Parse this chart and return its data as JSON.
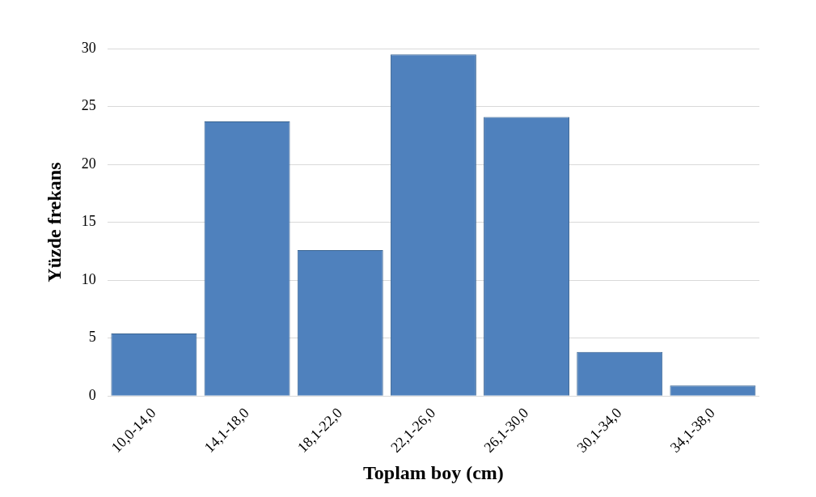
{
  "chart_data": {
    "type": "bar",
    "xlabel": "Toplam boy (cm)",
    "ylabel": "Yüzde frekans",
    "categories": [
      "10,0-14,0",
      "14,1-18,0",
      "18,1-22,0",
      "22,1-26,0",
      "26,1-30,0",
      "30,1-34,0",
      "34,1-38,0"
    ],
    "values": [
      5.4,
      23.7,
      12.6,
      29.5,
      24.1,
      3.8,
      0.9
    ],
    "color": "#4f81bd",
    "ylim": [
      0,
      30
    ],
    "yticks": [
      0,
      5,
      10,
      15,
      20,
      25,
      30
    ],
    "grid": "y",
    "legend": false
  }
}
